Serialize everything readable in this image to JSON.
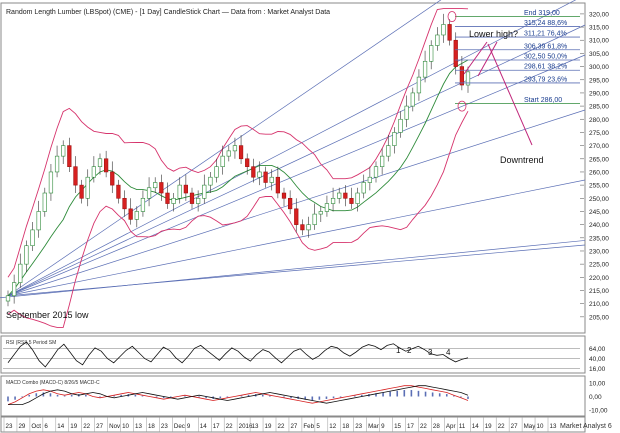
{
  "header": {
    "title": "Random Length Lumber (LBSpot) (CME) - [1 Day] CandleStick Chart — Data from : Market Analyst Data"
  },
  "annotations": {
    "september_low": "September 2015 low",
    "lower_high": "Lower high?",
    "downtrend": "Downtrend",
    "end_label": "End 319,00",
    "start_label": "Start 286,00",
    "rsi_counts": [
      "1",
      "2",
      "3",
      "4"
    ]
  },
  "fib_levels": [
    {
      "label": "315,24 88,6%",
      "value": 315.24
    },
    {
      "label": "311,21 76,4%",
      "value": 311.21
    },
    {
      "label": "306,39 61,8%",
      "value": 306.39
    },
    {
      "label": "302,50 50,0%",
      "value": 302.5
    },
    {
      "label": "298,61 38,2%",
      "value": 298.61
    },
    {
      "label": "293,79 23,6%",
      "value": 293.79
    }
  ],
  "fib_bounds": {
    "end": 319.0,
    "start": 286.0
  },
  "indicators": {
    "rsi_title": "RSI (RSI) 5 Period SM",
    "macd_title": "MACD Combo (MACD-C) 8/26/5 MACD-C",
    "rsi_ticks": [
      "64,00",
      "40,00",
      "16,00"
    ],
    "macd_ticks": [
      "10,00",
      "0,00",
      "-10,00"
    ]
  },
  "footer": {
    "brand": "Market Analyst 6"
  },
  "chart_data": {
    "type": "candlestick",
    "ylim": [
      200,
      323
    ],
    "y_ticks": [
      205,
      210,
      215,
      220,
      225,
      230,
      235,
      240,
      245,
      250,
      255,
      260,
      265,
      270,
      275,
      280,
      285,
      290,
      295,
      300,
      305,
      310,
      315,
      320
    ],
    "y_tick_labels": [
      "205,00",
      "210,00",
      "215,00",
      "220,00",
      "225,00",
      "230,00",
      "235,00",
      "240,00",
      "245,00",
      "250,00",
      "255,00",
      "260,00",
      "265,00",
      "270,00",
      "275,00",
      "280,00",
      "285,00",
      "290,00",
      "295,00",
      "300,00",
      "305,00",
      "310,00",
      "315,00",
      "320,00"
    ],
    "x_tick_labels": [
      "23",
      "29",
      "Oct",
      "6",
      "14",
      "19",
      "22",
      "27",
      "Nov",
      "10",
      "13",
      "18",
      "23",
      "Dec",
      "9",
      "14",
      "17",
      "22",
      "2016",
      "13",
      "19",
      "22",
      "27",
      "Feb",
      "5",
      "12",
      "18",
      "23",
      "Mar",
      "9",
      "15",
      "17",
      "22",
      "28",
      "Apr",
      "11",
      "14",
      "19",
      "22",
      "27",
      "May",
      "10",
      "13"
    ],
    "closes": [
      213,
      218,
      225,
      232,
      238,
      245,
      252,
      260,
      266,
      270,
      262,
      255,
      250,
      258,
      262,
      265,
      260,
      255,
      250,
      246,
      242,
      245,
      250,
      254,
      256,
      252,
      248,
      250,
      255,
      252,
      248,
      250,
      255,
      258,
      262,
      266,
      268,
      270,
      265,
      262,
      258,
      260,
      256,
      258,
      252,
      250,
      246,
      240,
      238,
      240,
      244,
      245,
      248,
      250,
      252,
      250,
      248,
      252,
      256,
      258,
      262,
      266,
      270,
      275,
      280,
      285,
      290,
      296,
      302,
      308,
      312,
      316,
      310,
      300,
      293,
      298
    ],
    "bollinger": {
      "upper_shown": true,
      "middle_shown": true,
      "lower_shown": true
    },
    "rsi_values": [
      30,
      50,
      70,
      80,
      60,
      35,
      20,
      40,
      62,
      75,
      55,
      35,
      25,
      48,
      66,
      58,
      40,
      30,
      45,
      60,
      70,
      55,
      40,
      32,
      50,
      68,
      60,
      42,
      30,
      46,
      65,
      72,
      60,
      48,
      36,
      52,
      66,
      58,
      44,
      34,
      50,
      62,
      56,
      42,
      30,
      44,
      58,
      64,
      50,
      38,
      46,
      60,
      70,
      66,
      54,
      46,
      56,
      68,
      74,
      70,
      62,
      72,
      76,
      66,
      58,
      64,
      70,
      62,
      52,
      48,
      50,
      40,
      32,
      38,
      42
    ],
    "macd_values": [
      -6,
      -4,
      -1,
      2,
      4,
      5,
      4,
      2,
      1,
      2,
      3,
      2,
      0,
      -1,
      0,
      1,
      2,
      3,
      2,
      1,
      0,
      -1,
      -2,
      -1,
      0,
      1,
      0,
      -1,
      -2,
      -3,
      -2,
      -1,
      0,
      1,
      2,
      3,
      2,
      1,
      0,
      -1,
      -2,
      -3,
      -4,
      -5,
      -4,
      -3,
      -2,
      -1,
      0,
      1,
      2,
      3,
      4,
      5,
      6,
      7,
      8,
      8,
      7,
      6,
      5,
      4,
      3,
      1,
      -1,
      -3
    ]
  }
}
